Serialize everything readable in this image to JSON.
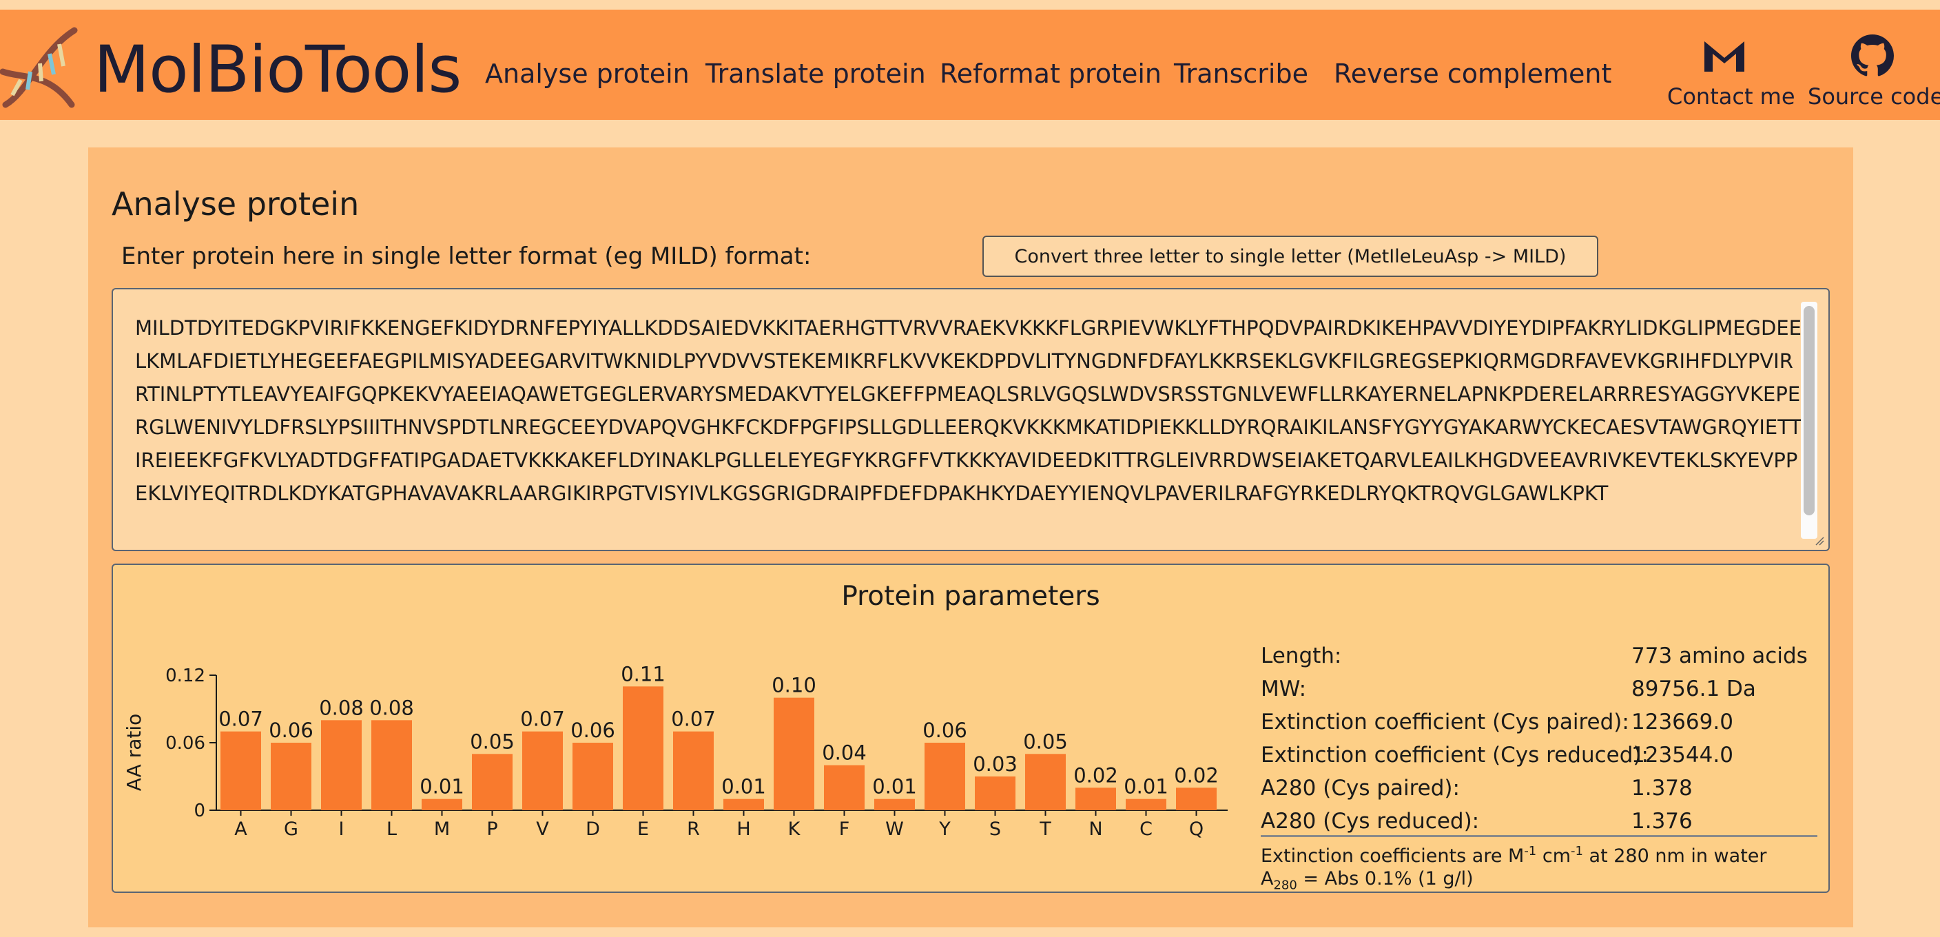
{
  "header": {
    "brand": "MolBioTools",
    "nav": [
      {
        "label": "Analyse protein"
      },
      {
        "label": "Translate protein"
      },
      {
        "label": "Reformat protein"
      },
      {
        "label": "Transcribe"
      },
      {
        "label": "Reverse complement"
      }
    ],
    "contact_label": "Contact me",
    "source_label": "Source code",
    "contact_icon": "gmail-icon",
    "source_icon": "github-icon"
  },
  "main": {
    "title": "Analyse protein",
    "prompt": "Enter protein here in single letter format (eg MILD) format:",
    "convert_button": "Convert three letter to single letter (MetIleLeuAsp -> MILD)",
    "sequence": "MILDTDYITEDGKPVIRIFKKENGEFKIDYDRNFEPYIYALLKDDSAIEDVKKITAERHGTTVRVVRAEKVKKKFLGRPIEVWKLYFTHPQDVPAIRDKIKEHPAVVDIYEYDIPFAKRYLIDKGLIPMEGDEELKMLAFDIETLYHEGEEFAEGPILMISYADEEGARVITWKNIDLPYVDVVSTEKEMIKRFLKVVKEKDPDVLITYNGDNFDFAYLKKRSEKLGVKFILGREGSEPKIQRMGDRFAVEVKGRIHFDLYPVIRRTINLPTYTLEAVYEAIFGQPKEKVYAEEIAQAWETGEGLERVARYSMEDAKVTYELGKEFFPMEAQLSRLVGQSLWDVSRSSTGNLVEWFLLRKAYERNELAPNKPDERELARRRESYAGGYVKEPERGLWENIVYLDFRSLYPSIIITHNVSPDTLNREGCEEYDVAPQVGHKFCKDFPGFIPSLLGDLLEERQKVKKKMKATIDPIEKKLLDYRQRAIKILANSFYGYYGYAKARWYCKECAESVTAWGRQYIETTIREIEEKFGFKVLYADTDGFFATIPGADAETVKKKAKEFLDYINAKLPGLLELEYEGFYKRGFFVTKKKYAVIDEEDKITTRGLEIVRRDWSEIAKETQARVLEAILKHGDVEEAVRIVKEVTEKLSKYEVPPEKLVIYEQITRDLKDYKATGPHAVAVAKRLAARGIKIRPGTVISYIVLKGSGRIGDRAIPFDEFDPAKHKYDAEYYIENQVLPAVERILRAFGYRKEDLRYQKTRQVGLGAWLKPKT"
  },
  "params": {
    "title": "Protein parameters",
    "rows": [
      {
        "label": "Length:",
        "value": "773 amino acids"
      },
      {
        "label": "MW:",
        "value": "89756.1 Da"
      },
      {
        "label": "Extinction coefficient (Cys paired):",
        "value": "123669.0"
      },
      {
        "label": "Extinction coefficient (Cys reduced):",
        "value": "123544.0"
      },
      {
        "label": "A280 (Cys paired):",
        "value": "1.378"
      },
      {
        "label": "A280 (Cys reduced):",
        "value": "1.376"
      }
    ],
    "note1_pre": "Extinction coefficients are M",
    "note1_sup1": "-1",
    "note1_mid": " cm",
    "note1_sup2": "-1",
    "note1_post": " at 280 nm in water",
    "note2_pre": "A",
    "note2_sub": "280",
    "note2_post": " = Abs 0.1% (1 g/l)"
  },
  "chart_data": {
    "type": "bar",
    "ylabel": "AA ratio",
    "xlabel": "",
    "title": "",
    "ylim": [
      0,
      0.12
    ],
    "yticks": [
      0,
      0.06,
      0.12
    ],
    "ytick_labels": [
      "0",
      "0.06",
      "0.12"
    ],
    "categories": [
      "A",
      "G",
      "I",
      "L",
      "M",
      "P",
      "V",
      "D",
      "E",
      "R",
      "H",
      "K",
      "F",
      "W",
      "Y",
      "S",
      "T",
      "N",
      "C",
      "Q"
    ],
    "values": [
      0.07,
      0.06,
      0.08,
      0.08,
      0.01,
      0.05,
      0.07,
      0.06,
      0.11,
      0.07,
      0.01,
      0.1,
      0.04,
      0.01,
      0.06,
      0.03,
      0.05,
      0.02,
      0.01,
      0.02
    ],
    "labels": [
      "0.07",
      "0.06",
      "0.08",
      "0.08",
      "0.01",
      "0.05",
      "0.07",
      "0.06",
      "0.11",
      "0.07",
      "0.01",
      "0.10",
      "0.04",
      "0.01",
      "0.06",
      "0.03",
      "0.05",
      "0.02",
      "0.01",
      "0.02"
    ],
    "bar_color": "#f97a2d",
    "grid": false,
    "legend": "none"
  }
}
